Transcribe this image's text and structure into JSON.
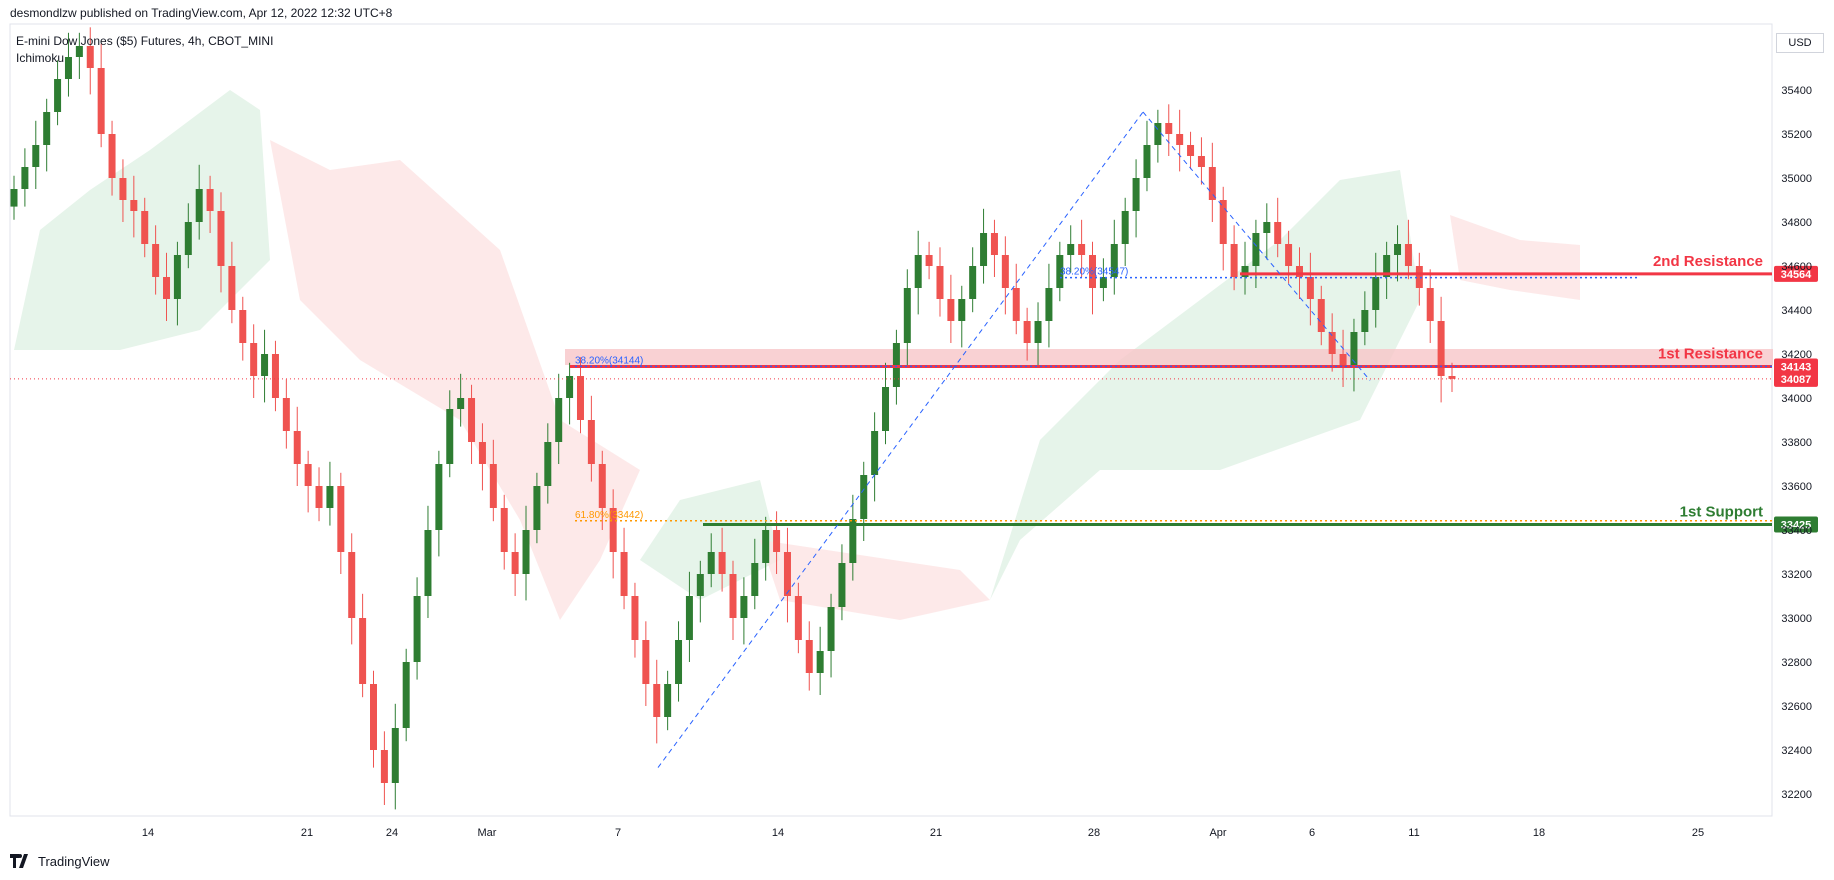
{
  "header": {
    "published": "desmondlzw published on TradingView.com, Apr 12, 2022 12:32 UTC+8"
  },
  "symbol": {
    "title": "E-mini Dow Jones ($5) Futures, 4h, CBOT_MINI",
    "indicator": "Ichimoku"
  },
  "footer": {
    "brand": "TradingView"
  },
  "price_axis": {
    "unit": "USD"
  },
  "colors": {
    "up": "#2e7d32",
    "down": "#ef5350",
    "resistance": "#f23645",
    "support": "#2e7d32",
    "cloud_bull": "#e6f4ea",
    "cloud_bear": "#fde4e4",
    "fib_blue": "#2962ff",
    "fib_orange": "#ff9800"
  },
  "chart_data": {
    "type": "candlestick",
    "title": "E-mini Dow Jones ($5) Futures, 4h, CBOT_MINI",
    "ylim": [
      32100,
      35700
    ],
    "y_ticks": [
      32200,
      32400,
      32600,
      32800,
      33000,
      33200,
      33400,
      33600,
      33800,
      34000,
      34200,
      34400,
      34600,
      34800,
      35000,
      35200,
      35400
    ],
    "x_ticks": [
      "14",
      "21",
      "24",
      "Mar",
      "7",
      "14",
      "21",
      "28",
      "Apr",
      "6",
      "11",
      "18",
      "25"
    ],
    "price_levels": [
      {
        "name": "2nd Resistance",
        "value": 34564,
        "label": "34564",
        "color": "#f23645"
      },
      {
        "name": "1st Resistance",
        "value": 34143,
        "label": "34143",
        "color": "#f23645"
      },
      {
        "name": "last price",
        "value": 34087,
        "label": "34087",
        "color": "#f23645"
      },
      {
        "name": "1st Support",
        "value": 33425,
        "label": "33425",
        "color": "#2e7d32"
      }
    ],
    "level_labels": {
      "r2": "2nd Resistance",
      "r1": "1st Resistance",
      "s1": "1st Support"
    },
    "fib_annotations": [
      {
        "text": "38.20%(34547)",
        "value": 34547,
        "color": "#2962ff"
      },
      {
        "text": "38.20%(34144)",
        "value": 34144,
        "color": "#2962ff"
      },
      {
        "text": "61.80%(33442)",
        "value": 33442,
        "color": "#ff9800"
      }
    ],
    "legs": [
      {
        "from": 32320,
        "to": 35300
      },
      {
        "from": 35300,
        "to": 34080
      }
    ],
    "candles_close": [
      34950,
      35050,
      35150,
      35300,
      35450,
      35550,
      35600,
      35500,
      35200,
      35000,
      34900,
      34850,
      34700,
      34550,
      34450,
      34650,
      34800,
      34950,
      34850,
      34600,
      34400,
      34250,
      34100,
      34200,
      34000,
      33850,
      33700,
      33600,
      33500,
      33600,
      33300,
      33000,
      32700,
      32400,
      32250,
      32500,
      32800,
      33100,
      33400,
      33700,
      33950,
      34000,
      33800,
      33700,
      33500,
      33300,
      33200,
      33400,
      33600,
      33800,
      34000,
      34100,
      33900,
      33700,
      33500,
      33300,
      33100,
      32900,
      32700,
      32550,
      32700,
      32900,
      33100,
      33200,
      33300,
      33200,
      33000,
      33100,
      33250,
      33400,
      33300,
      33100,
      32900,
      32750,
      32850,
      33050,
      33250,
      33450,
      33650,
      33850,
      34050,
      34250,
      34500,
      34650,
      34600,
      34450,
      34350,
      34450,
      34600,
      34750,
      34650,
      34500,
      34350,
      34250,
      34350,
      34500,
      34650,
      34700,
      34650,
      34500,
      34550,
      34700,
      34850,
      35000,
      35150,
      35250,
      35200,
      35150,
      35100,
      35050,
      34900,
      34700,
      34550,
      34600,
      34750,
      34800,
      34700,
      34600,
      34550,
      34450,
      34300,
      34200,
      34150,
      34300,
      34400,
      34550,
      34650,
      34700,
      34600,
      34500,
      34350,
      34100,
      34087
    ]
  }
}
